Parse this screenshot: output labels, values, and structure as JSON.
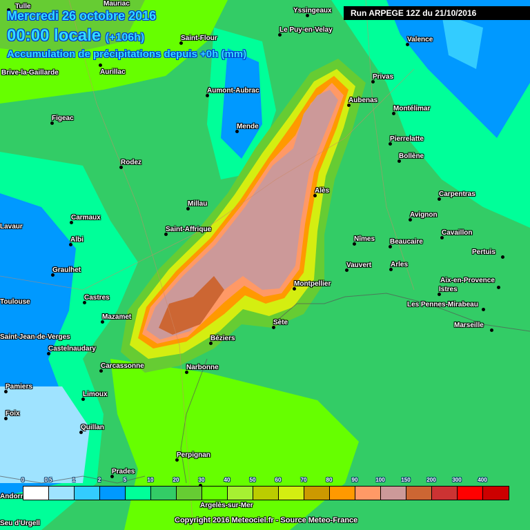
{
  "header": {
    "date": "Mercredi 26 octobre 2016",
    "time": "00:00 locale",
    "offset": "(+106h)",
    "subtitle": "Accumulation de précipitations depuis +0h (mm)"
  },
  "run": "Run ARPEGE 12Z du 21/10/2016",
  "copyright": "Copyright 2016 Meteociel.fr - Source Meteo-France",
  "legend": {
    "labels": [
      "0",
      "0.5",
      "1",
      "2",
      "5",
      "10",
      "20",
      "30",
      "40",
      "50",
      "60",
      "70",
      "80",
      "90",
      "100",
      "150",
      "200",
      "300",
      "400"
    ],
    "colors": [
      "#ffffff",
      "#9fe3ff",
      "#33ccff",
      "#0099ff",
      "#00ff99",
      "#33cc66",
      "#66cc33",
      "#66ff00",
      "#a6f032",
      "#bbcc00",
      "#d4ee11",
      "#cc9900",
      "#ff9900",
      "#ff9966",
      "#cc9999",
      "#cc6633",
      "#cc3333",
      "#ff0000",
      "#cc0000"
    ]
  },
  "cities": [
    "Tulle",
    "Mauriac",
    "Brive-la-Gaillarde",
    "Saint-Flour",
    "Aurillac",
    "Yssingeaux",
    "Le Puy-en-Velay",
    "Valence",
    "Privas",
    "Aubenas",
    "Montélimar",
    "Aumont-Aubrac",
    "Figeac",
    "Mende",
    "Pierrelatte",
    "Bollène",
    "Rodez",
    "Alès",
    "Carpentras",
    "Millau",
    "Avignon",
    "Carmaux",
    "Saint-Affrique",
    "Cavaillon",
    "Albi",
    "Nîmes",
    "Beaucaire",
    "Pertuis",
    "Vauvert",
    "Arles",
    "Graulhet",
    "Montpellier",
    "Aix-en-Provence",
    "Istres",
    "Toulouse",
    "Castres",
    "Les Pennes-Mirabeau",
    "Mazamet",
    "Sète",
    "Marseille",
    "Béziers",
    "Lavaur",
    "Saint-Jean-de-Verges",
    "Castelnaudary",
    "Carcassonne",
    "Narbonne",
    "Pamiers",
    "Limoux",
    "Foix",
    "Quillan",
    "Perpignan",
    "Prades",
    "Argelès-sur-Mer",
    "Andorra",
    "Seu d'Urgell"
  ]
}
